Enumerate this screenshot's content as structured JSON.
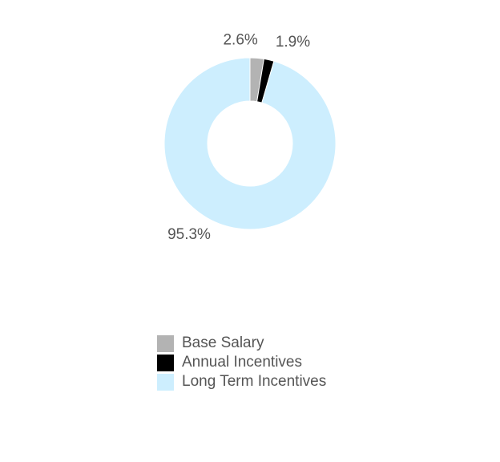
{
  "chart_data": {
    "type": "pie",
    "style": "donut",
    "title": "",
    "slices": [
      {
        "name": "Base Salary",
        "value": 2.6,
        "label": "2.6%",
        "color": "#b3b3b3"
      },
      {
        "name": "Annual Incentives",
        "value": 1.9,
        "label": "1.9%",
        "color": "#000000"
      },
      {
        "name": "Long Term Incentives",
        "value": 95.3,
        "label": "95.3%",
        "color": "#cdeefe"
      }
    ],
    "legend_position": "bottom"
  }
}
